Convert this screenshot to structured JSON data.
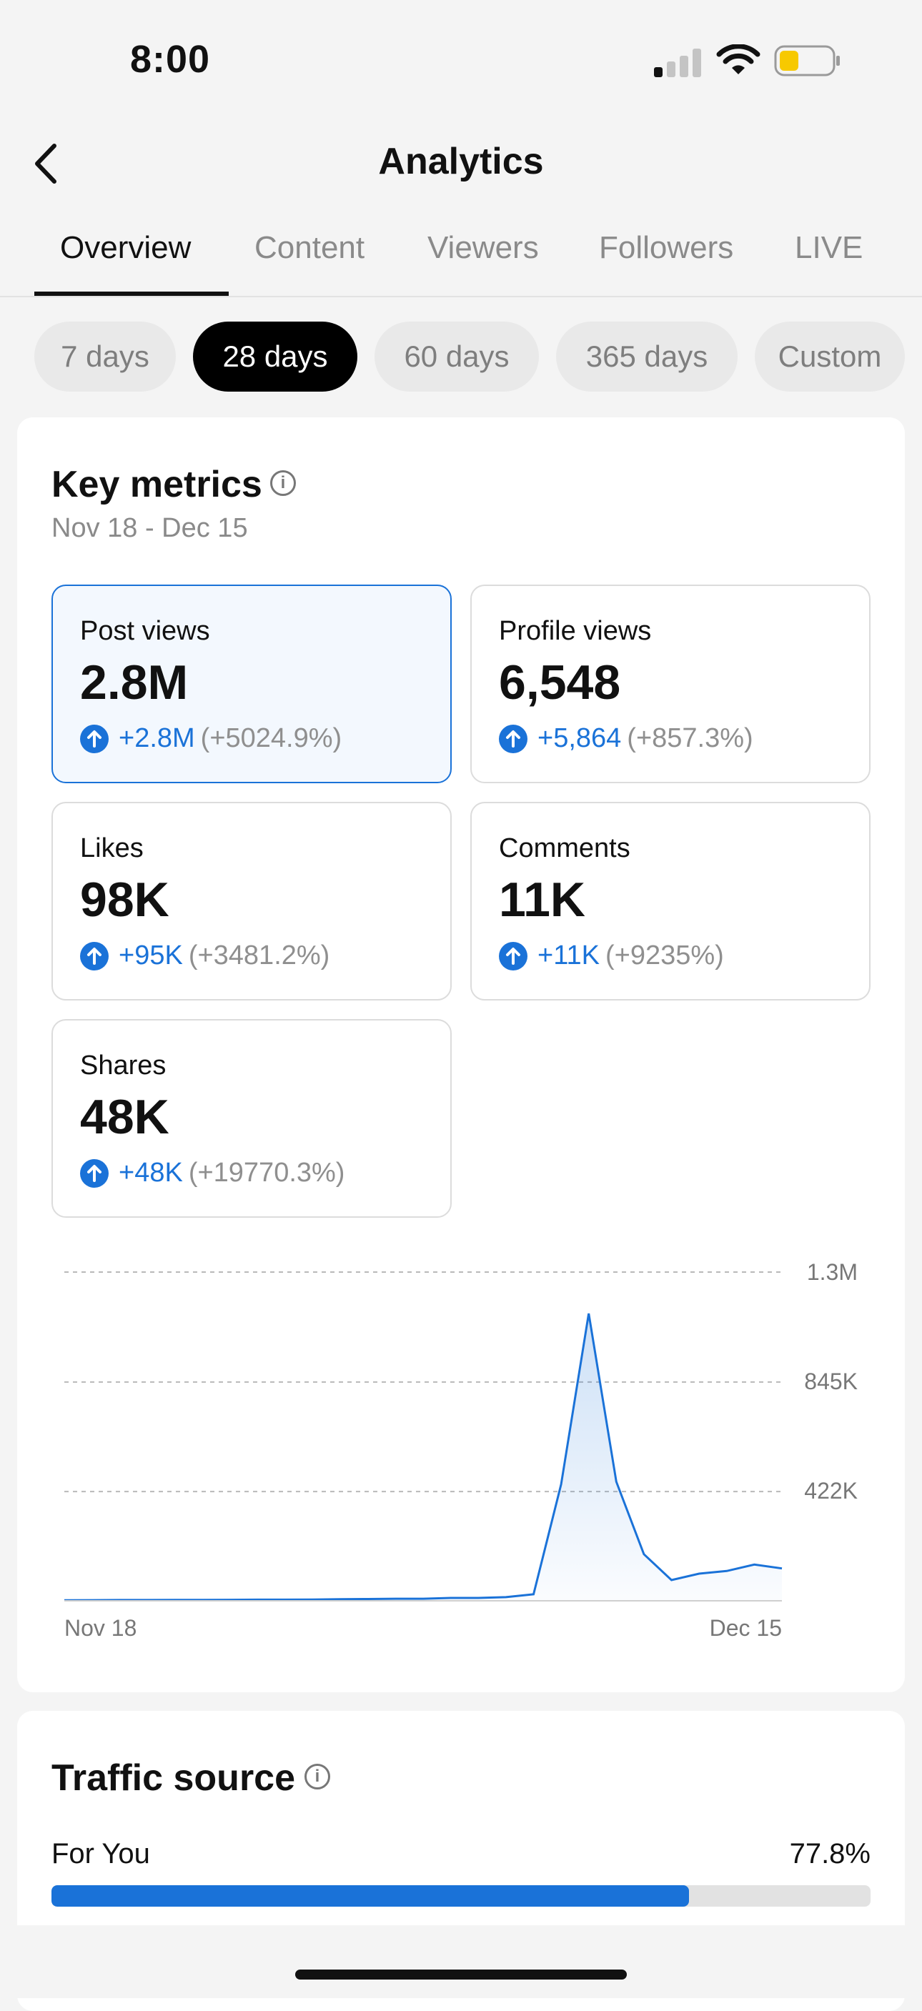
{
  "status_bar": {
    "time": "8:00"
  },
  "header": {
    "title": "Analytics"
  },
  "tabs": [
    "Overview",
    "Content",
    "Viewers",
    "Followers",
    "LIVE"
  ],
  "ranges": [
    "7 days",
    "28 days",
    "60 days",
    "365 days",
    "Custom"
  ],
  "selected_range": "28 days",
  "key_metrics": {
    "title": "Key metrics",
    "date_range": "Nov 18 - Dec 15",
    "cards": [
      {
        "label": "Post views",
        "value": "2.8M",
        "delta": "+2.8M",
        "pct": "(+5024.9%)",
        "selected": true
      },
      {
        "label": "Profile views",
        "value": "6,548",
        "delta": "+5,864",
        "pct": "(+857.3%)"
      },
      {
        "label": "Likes",
        "value": "98K",
        "delta": "+95K",
        "pct": "(+3481.2%)"
      },
      {
        "label": "Comments",
        "value": "11K",
        "delta": "+11K",
        "pct": "(+9235%)"
      },
      {
        "label": "Shares",
        "value": "48K",
        "delta": "+48K",
        "pct": "(+19770.3%)"
      }
    ]
  },
  "chart_data": {
    "type": "area",
    "x_start_label": "Nov 18",
    "x_end_label": "Dec 15",
    "y_ticks": [
      "1.3M",
      "845K",
      "422K"
    ],
    "y_tick_values": [
      1270000,
      845000,
      422000
    ],
    "ylim": [
      0,
      1270000
    ],
    "grid": true,
    "color": "#1a72d8",
    "values": [
      2000,
      2500,
      3000,
      3000,
      3500,
      3500,
      4000,
      4500,
      4500,
      5000,
      6000,
      7000,
      8000,
      8000,
      11000,
      11000,
      14000,
      25000,
      450000,
      1110000,
      460000,
      180000,
      80000,
      105000,
      115000,
      140000,
      125000
    ]
  },
  "traffic_source": {
    "title": "Traffic source",
    "items": [
      {
        "label": "For You",
        "percent": "77.8%",
        "value": 77.8
      }
    ]
  },
  "colors": {
    "accent": "#1a72d8",
    "background": "#f4f4f4"
  }
}
